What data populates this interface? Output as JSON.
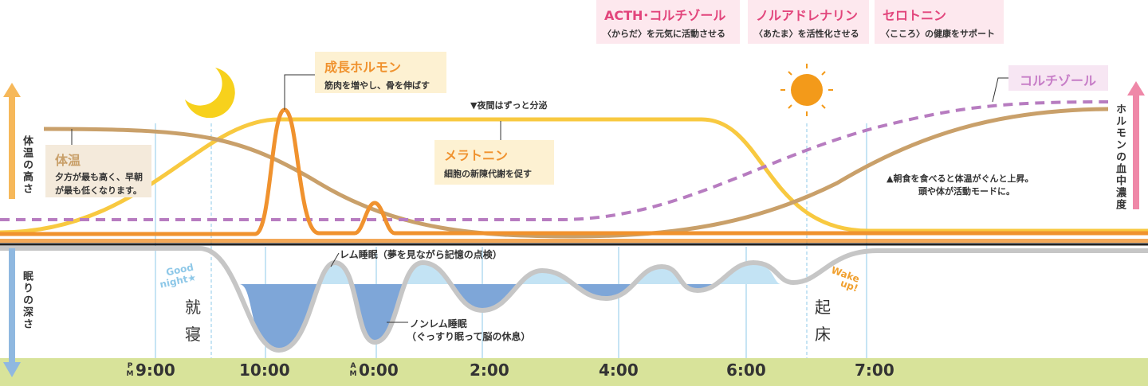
{
  "hormones": [
    {
      "title": "ACTH･コルチゾール",
      "desc": "〈からだ〉を元気に活動させる"
    },
    {
      "title": "ノルアドレナリン",
      "desc": "〈あたま〉を活性化させる"
    },
    {
      "title": "セロトニン",
      "desc": "〈こころ〉の健康をサポート"
    }
  ],
  "growth_hormone": {
    "title": "成長ホルモン",
    "desc": "筋肉を増やし、骨を伸ばす"
  },
  "melatonin": {
    "note": "▼夜間はずっと分泌",
    "title": "メラトニン",
    "desc": "細胞の新陳代謝を促す"
  },
  "cortisol": "コルチゾール",
  "body_temp": {
    "title": "体温",
    "desc": [
      "夕方が最も高く、早朝",
      "が最も低くなります。"
    ]
  },
  "breakfast_note": [
    "▲朝食を食べると体温がぐんと上昇。",
    "頭や体が活動モードに。"
  ],
  "axes": {
    "left_top": "体温の高さ",
    "left_bottom": "眠りの深さ",
    "right": "ホルモンの血中濃度"
  },
  "good_night": [
    "Good",
    "night★"
  ],
  "bedtime": [
    "就",
    "寝"
  ],
  "wakeup": [
    "起",
    "床"
  ],
  "wake_up": [
    "Wake",
    "up!"
  ],
  "rem": "レム睡眠（夢を見ながら記憶の点検）",
  "nonrem": [
    "ノンレム睡眠",
    "（ぐっすり眠って脳の休息）"
  ],
  "times": [
    {
      "prefix": [
        "P",
        "M"
      ],
      "label": "9:00"
    },
    {
      "label": "10:00"
    },
    {
      "prefix": [
        "A",
        "M"
      ],
      "label": "0:00"
    },
    {
      "label": "2:00"
    },
    {
      "label": "4:00"
    },
    {
      "label": "6:00"
    },
    {
      "label": "7:00"
    }
  ]
}
